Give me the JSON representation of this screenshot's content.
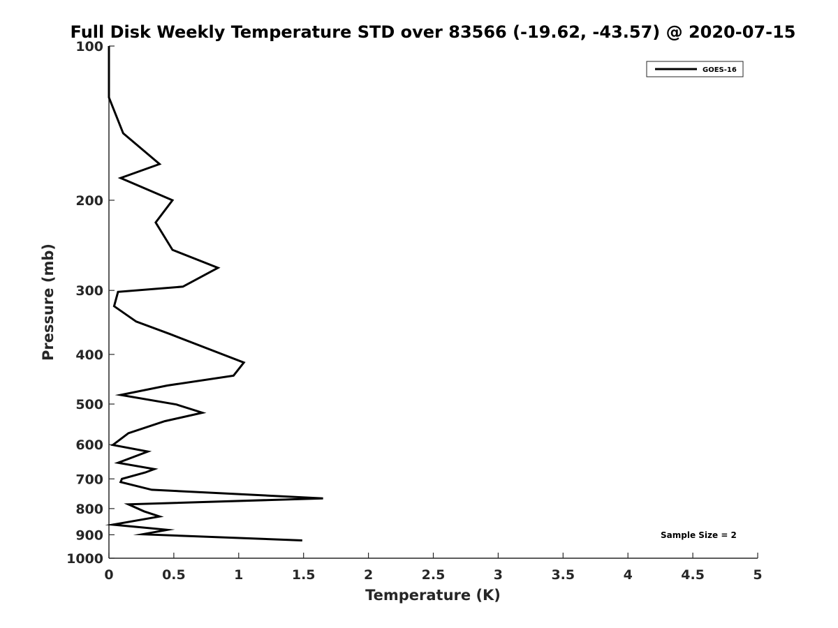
{
  "chart_data": {
    "type": "line",
    "title": "Full Disk Weekly Temperature STD over 83566 (-19.62, -43.57) @ 2020-07-15",
    "xlabel": "Temperature (K)",
    "ylabel": "Pressure (mb)",
    "xlim": [
      0,
      5
    ],
    "ylim": [
      100,
      1000
    ],
    "y_scale": "log",
    "y_direction": "reversed",
    "grid": false,
    "legend_position": "top-right",
    "x_ticks": [
      0,
      0.5,
      1,
      1.5,
      2,
      2.5,
      3,
      3.5,
      4,
      4.5,
      5
    ],
    "x_tick_labels": [
      "0",
      "0.5",
      "1",
      "1.5",
      "2",
      "2.5",
      "3",
      "3.5",
      "4",
      "4.5",
      "5"
    ],
    "y_ticks": [
      100,
      200,
      300,
      400,
      500,
      600,
      700,
      800,
      900,
      1000
    ],
    "y_tick_labels": [
      "100",
      "200",
      "300",
      "400",
      "500",
      "600",
      "700",
      "800",
      "900",
      "1000"
    ],
    "series": [
      {
        "name": "GOES-16",
        "color": "#000000",
        "x": [
          0.0,
          0.0,
          0.11,
          0.39,
          0.09,
          0.49,
          0.36,
          0.49,
          0.84,
          0.57,
          0.07,
          0.04,
          0.21,
          0.47,
          1.04,
          0.96,
          0.45,
          0.09,
          0.52,
          0.72,
          0.43,
          0.15,
          0.03,
          0.3,
          0.07,
          0.35,
          0.28,
          0.1,
          0.09,
          0.33,
          1.65,
          0.15,
          0.27,
          0.39,
          0.03,
          0.45,
          0.26,
          1.49
        ],
        "y": [
          100,
          126,
          148,
          170,
          181,
          200,
          221,
          250,
          271,
          295,
          302,
          322,
          345,
          365,
          415,
          440,
          460,
          480,
          501,
          520,
          540,
          570,
          601,
          619,
          651,
          670,
          680,
          700,
          710,
          735,
          764,
          785,
          810,
          829,
          860,
          880,
          898,
          923
        ]
      }
    ],
    "annotations": [
      "Sample Size = 2"
    ]
  }
}
